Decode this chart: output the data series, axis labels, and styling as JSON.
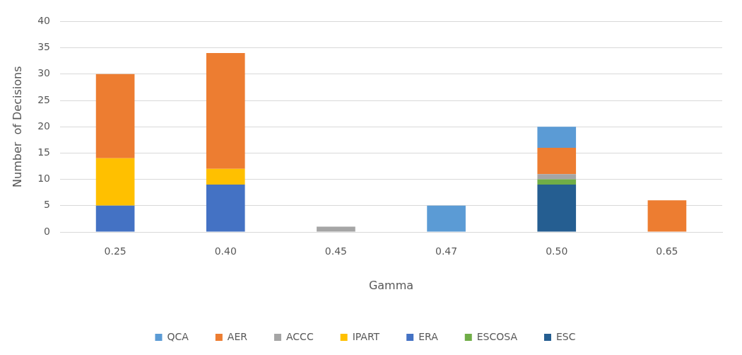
{
  "chart_data": {
    "type": "bar",
    "stacked": true,
    "xlabel": "Gamma",
    "ylabel": "Number  of Decisions",
    "categories": [
      "0.25",
      "0.40",
      "0.45",
      "0.47",
      "0.50",
      "0.65"
    ],
    "series": [
      {
        "name": "ESC",
        "color": "#255e91",
        "values": [
          0,
          0,
          0,
          0,
          9,
          0
        ]
      },
      {
        "name": "ESCOSA",
        "color": "#70ad47",
        "values": [
          0,
          0,
          0,
          0,
          1,
          0
        ]
      },
      {
        "name": "ERA",
        "color": "#4472c4",
        "values": [
          5,
          9,
          0,
          0,
          0,
          0
        ]
      },
      {
        "name": "IPART",
        "color": "#ffc000",
        "values": [
          9,
          3,
          0,
          0,
          0,
          0
        ]
      },
      {
        "name": "ACCC",
        "color": "#a5a5a5",
        "values": [
          0,
          0,
          1,
          0,
          1,
          0
        ]
      },
      {
        "name": "AER",
        "color": "#ed7d31",
        "values": [
          16,
          22,
          0,
          0,
          5,
          6
        ]
      },
      {
        "name": "QCA",
        "color": "#5b9bd5",
        "values": [
          0,
          0,
          0,
          5,
          4,
          0
        ]
      }
    ],
    "ylim": [
      0,
      40
    ],
    "yticks": [
      0,
      5,
      10,
      15,
      20,
      25,
      30,
      35,
      40
    ],
    "grid": "y",
    "legend": "bottom"
  }
}
